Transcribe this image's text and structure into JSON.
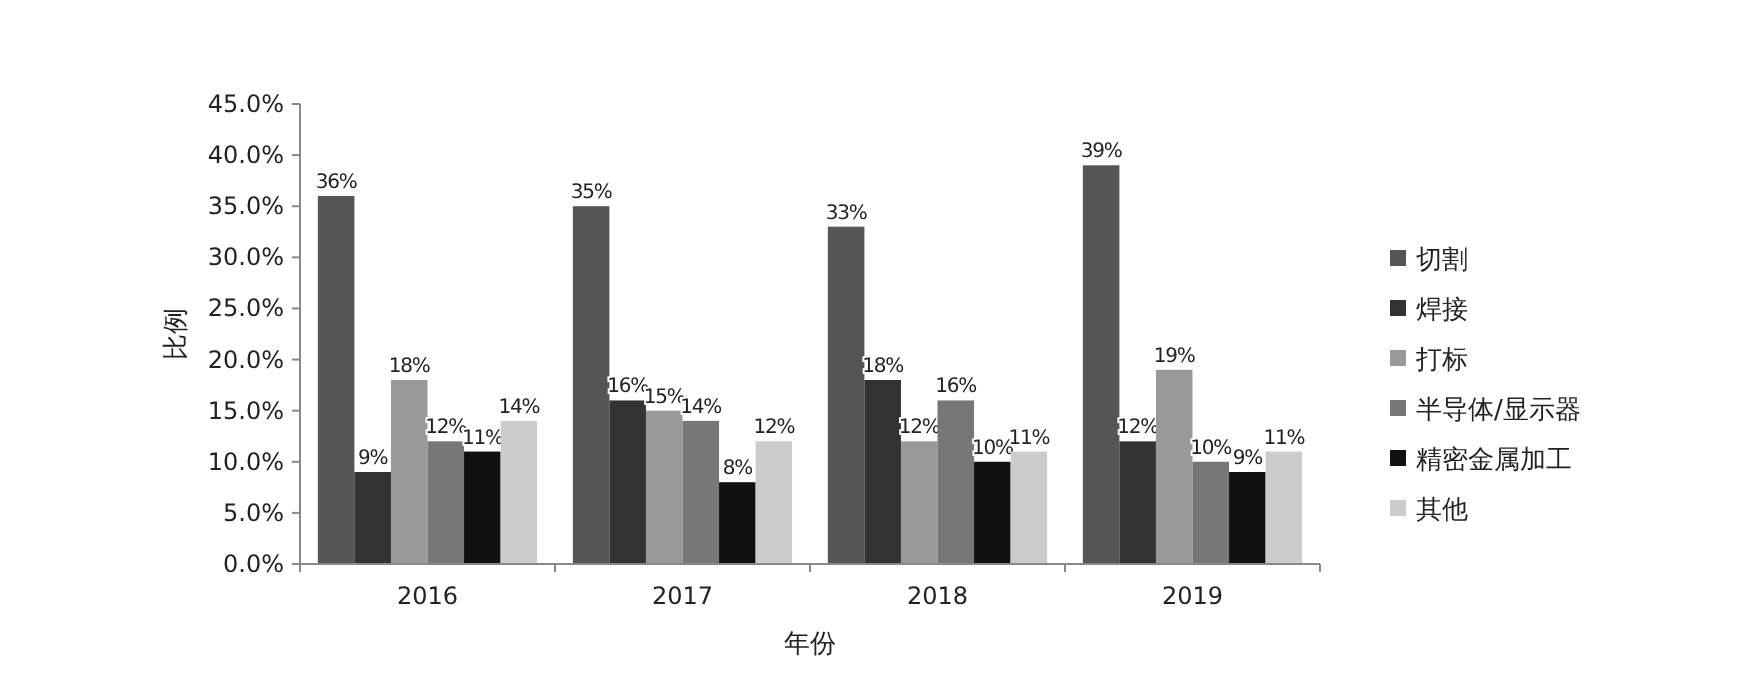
{
  "chart_data": {
    "type": "bar",
    "xlabel": "年份",
    "ylabel": "比例",
    "categories": [
      "2016",
      "2017",
      "2018",
      "2019"
    ],
    "series": [
      {
        "name": "切割",
        "color": "#555555",
        "values": [
          36,
          35,
          33,
          39
        ],
        "value_labels": [
          "36%",
          "35%",
          "33%",
          "39%"
        ]
      },
      {
        "name": "焊接",
        "color": "#333333",
        "values": [
          9,
          16,
          18,
          12
        ],
        "value_labels": [
          "9%",
          "16%",
          "18%",
          "12%"
        ]
      },
      {
        "name": "打标",
        "color": "#999999",
        "values": [
          18,
          15,
          12,
          19
        ],
        "value_labels": [
          "18%",
          "15%",
          "12%",
          "19%"
        ]
      },
      {
        "name": "半导体/显示器",
        "color": "#777777",
        "values": [
          12,
          14,
          16,
          10
        ],
        "value_labels": [
          "12%",
          "14%",
          "16%",
          "10%"
        ]
      },
      {
        "name": "精密金属加工",
        "color": "#111111",
        "values": [
          11,
          8,
          10,
          9
        ],
        "value_labels": [
          "11%",
          "8%",
          "10%",
          "9%"
        ]
      },
      {
        "name": "其他",
        "color": "#cccccc",
        "values": [
          14,
          12,
          11,
          11
        ],
        "value_labels": [
          "14%",
          "12%",
          "11%",
          "11%"
        ]
      }
    ],
    "ylim": [
      0,
      45
    ],
    "yticks": [
      {
        "value": 0,
        "label": "0.0%"
      },
      {
        "value": 5,
        "label": "5.0%"
      },
      {
        "value": 10,
        "label": "10.0%"
      },
      {
        "value": 15,
        "label": "15.0%"
      },
      {
        "value": 20,
        "label": "20.0%"
      },
      {
        "value": 25,
        "label": "25.0%"
      },
      {
        "value": 30,
        "label": "30.0%"
      },
      {
        "value": 35,
        "label": "35.0%"
      },
      {
        "value": 40,
        "label": "40.0%"
      },
      {
        "value": 45,
        "label": "45.0%"
      }
    ],
    "grid": false,
    "legend": "right"
  }
}
